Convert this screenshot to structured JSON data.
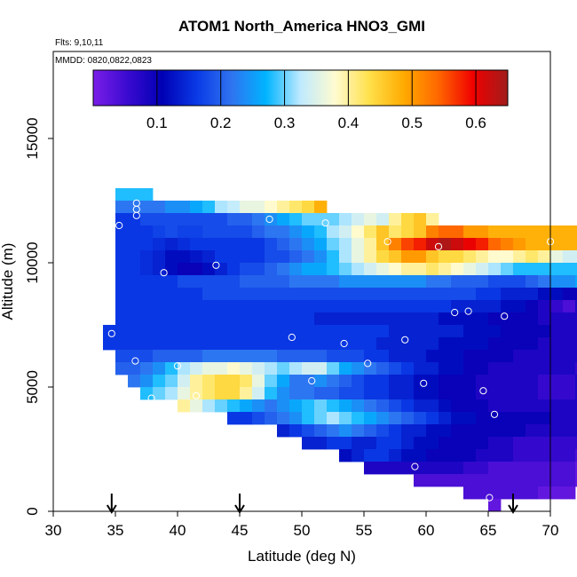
{
  "chart_data": {
    "type": "heatmap",
    "title": "ATOM1 North_America HNO3_GMI",
    "annotations": [
      "Flts: 9,10,11",
      "MMDD: 0820,0822,0823"
    ],
    "xlabel": "Latitude (deg N)",
    "ylabel": "Altitude (m)",
    "xlim": [
      30,
      70
    ],
    "ylim": [
      0,
      18500
    ],
    "x_ticks": [
      30,
      35,
      40,
      45,
      50,
      55,
      60,
      65,
      70
    ],
    "y_ticks": [
      0,
      5000,
      10000,
      15000
    ],
    "colorbar": {
      "min": 0.0,
      "max": 0.65,
      "ticks": [
        0.1,
        0.2,
        0.3,
        0.4,
        0.5,
        0.6
      ],
      "colors": [
        "#7a1ee8",
        "#3a0ad0",
        "#0000b4",
        "#0a3ae6",
        "#2f73f0",
        "#00b4ff",
        "#bfeaff",
        "#fffbd0",
        "#ffe04a",
        "#ffaa00",
        "#ff6600",
        "#f00000",
        "#a01c1c"
      ]
    },
    "cell_size": {
      "dlat": 1.0,
      "dalt": 500
    },
    "rows": [
      {
        "alt": 12750,
        "lat0": 35,
        "values": [
          0.28,
          0.28,
          0.28
        ]
      },
      {
        "alt": 12250,
        "lat0": 35,
        "values": [
          0.22,
          0.22,
          0.22,
          0.22,
          0.24,
          0.24,
          0.26,
          0.28,
          0.32,
          0.33,
          0.36,
          0.36,
          0.38,
          0.4,
          0.42,
          0.44,
          0.48
        ]
      },
      {
        "alt": 11750,
        "lat0": 35,
        "values": [
          0.16,
          0.16,
          0.18,
          0.18,
          0.18,
          0.18,
          0.18,
          0.18,
          0.18,
          0.2,
          0.2,
          0.22,
          0.24,
          0.26,
          0.28,
          0.3,
          0.3,
          0.3,
          0.32,
          0.34,
          0.36,
          0.34,
          0.4,
          0.44,
          0.46,
          0.4
        ]
      },
      {
        "alt": 11250,
        "lat0": 35,
        "values": [
          0.16,
          0.16,
          0.16,
          0.17,
          0.18,
          0.17,
          0.17,
          0.18,
          0.18,
          0.18,
          0.18,
          0.2,
          0.22,
          0.22,
          0.24,
          0.26,
          0.28,
          0.32,
          0.34,
          0.38,
          0.42,
          0.46,
          0.42,
          0.44,
          0.46,
          0.52,
          0.54,
          0.54,
          0.5,
          0.5,
          0.48,
          0.48,
          0.48,
          0.48,
          0.48,
          0.48,
          0.48,
          0.48,
          0.48
        ]
      },
      {
        "alt": 10750,
        "lat0": 35,
        "values": [
          0.16,
          0.16,
          0.16,
          0.15,
          0.14,
          0.15,
          0.16,
          0.16,
          0.16,
          0.16,
          0.16,
          0.16,
          0.18,
          0.2,
          0.22,
          0.24,
          0.26,
          0.3,
          0.32,
          0.36,
          0.4,
          0.46,
          0.52,
          0.56,
          0.58,
          0.62,
          0.64,
          0.62,
          0.6,
          0.58,
          0.54,
          0.52,
          0.5,
          0.48,
          0.48,
          0.48,
          0.48,
          0.48,
          0.48,
          0.48,
          0.48,
          0.48,
          0.48,
          0.48,
          0.48,
          0.48
        ]
      },
      {
        "alt": 10250,
        "lat0": 35,
        "values": [
          0.16,
          0.16,
          0.15,
          0.14,
          0.12,
          0.12,
          0.13,
          0.14,
          0.16,
          0.16,
          0.16,
          0.16,
          0.18,
          0.18,
          0.2,
          0.22,
          0.24,
          0.28,
          0.32,
          0.36,
          0.4,
          0.44,
          0.46,
          0.5,
          0.5,
          0.46,
          0.44,
          0.44,
          0.42,
          0.4,
          0.38,
          0.38,
          0.4,
          0.42,
          0.4,
          0.36,
          0.34,
          0.34,
          0.34,
          0.34,
          0.34,
          0.34,
          0.34
        ]
      },
      {
        "alt": 9750,
        "lat0": 35,
        "values": [
          0.16,
          0.16,
          0.15,
          0.14,
          0.12,
          0.1,
          0.1,
          0.12,
          0.14,
          0.16,
          0.18,
          0.18,
          0.2,
          0.22,
          0.24,
          0.26,
          0.26,
          0.28,
          0.3,
          0.32,
          0.34,
          0.36,
          0.38,
          0.4,
          0.4,
          0.42,
          0.4,
          0.38,
          0.36,
          0.34,
          0.32,
          0.3,
          0.28,
          0.28,
          0.28,
          0.28,
          0.28,
          0.28,
          0.28,
          0.28,
          0.26,
          0.34,
          0.38,
          0.42
        ]
      },
      {
        "alt": 9250,
        "lat0": 35,
        "values": [
          0.16,
          0.16,
          0.16,
          0.16,
          0.16,
          0.18,
          0.18,
          0.18,
          0.18,
          0.18,
          0.2,
          0.2,
          0.2,
          0.2,
          0.22,
          0.22,
          0.22,
          0.22,
          0.24,
          0.24,
          0.24,
          0.24,
          0.24,
          0.24,
          0.24,
          0.22,
          0.22,
          0.2,
          0.2,
          0.2,
          0.18,
          0.18,
          0.18,
          0.2,
          0.22,
          0.24,
          0.24,
          0.26,
          0.28,
          0.3,
          0.32,
          0.34,
          0.36
        ]
      },
      {
        "alt": 8750,
        "lat0": 35,
        "values": [
          0.16,
          0.16,
          0.16,
          0.16,
          0.16,
          0.16,
          0.16,
          0.18,
          0.18,
          0.18,
          0.18,
          0.18,
          0.18,
          0.18,
          0.18,
          0.18,
          0.18,
          0.18,
          0.18,
          0.18,
          0.18,
          0.18,
          0.18,
          0.18,
          0.18,
          0.18,
          0.18,
          0.18,
          0.18,
          0.16,
          0.16,
          0.14,
          0.14,
          0.14,
          0.12,
          0.12,
          0.1,
          0.1,
          0.12,
          0.16,
          0.2,
          0.24,
          0.28
        ]
      },
      {
        "alt": 8250,
        "lat0": 35,
        "values": [
          0.16,
          0.16,
          0.16,
          0.16,
          0.16,
          0.16,
          0.16,
          0.16,
          0.16,
          0.16,
          0.16,
          0.16,
          0.16,
          0.16,
          0.16,
          0.16,
          0.16,
          0.16,
          0.16,
          0.16,
          0.16,
          0.16,
          0.16,
          0.16,
          0.16,
          0.16,
          0.16,
          0.14,
          0.14,
          0.14,
          0.14,
          0.12,
          0.12,
          0.1,
          0.08,
          0.06,
          0.04,
          0.08,
          0.1,
          0.14,
          0.18,
          0.22,
          0.26
        ]
      },
      {
        "alt": 7750,
        "lat0": 35,
        "values": [
          0.16,
          0.16,
          0.16,
          0.16,
          0.16,
          0.16,
          0.16,
          0.16,
          0.16,
          0.16,
          0.16,
          0.16,
          0.16,
          0.16,
          0.16,
          0.16,
          0.14,
          0.14,
          0.14,
          0.14,
          0.14,
          0.14,
          0.14,
          0.14,
          0.14,
          0.14,
          0.12,
          0.12,
          0.12,
          0.12,
          0.1,
          0.1,
          0.1,
          0.1,
          0.08,
          0.08,
          0.08,
          0.08,
          0.1,
          0.14,
          0.18,
          0.24,
          0.28
        ]
      },
      {
        "alt": 7250,
        "lat0": 34,
        "values": [
          0.16,
          0.16,
          0.16,
          0.16,
          0.16,
          0.16,
          0.16,
          0.16,
          0.16,
          0.16,
          0.16,
          0.16,
          0.16,
          0.16,
          0.16,
          0.16,
          0.16,
          0.16,
          0.16,
          0.16,
          0.16,
          0.16,
          0.16,
          0.14,
          0.14,
          0.14,
          0.14,
          0.14,
          0.14,
          0.12,
          0.12,
          0.12,
          0.1,
          0.1,
          0.1,
          0.1,
          0.08,
          0.08,
          0.08,
          0.08,
          0.08,
          0.08,
          0.08,
          0.08
        ]
      },
      {
        "alt": 6750,
        "lat0": 34,
        "values": [
          0.16,
          0.16,
          0.16,
          0.16,
          0.16,
          0.16,
          0.16,
          0.16,
          0.16,
          0.16,
          0.16,
          0.16,
          0.16,
          0.16,
          0.16,
          0.16,
          0.16,
          0.16,
          0.16,
          0.16,
          0.16,
          0.16,
          0.14,
          0.14,
          0.14,
          0.14,
          0.14,
          0.12,
          0.12,
          0.12,
          0.12,
          0.1,
          0.1,
          0.1,
          0.1,
          0.08,
          0.08,
          0.08,
          0.08,
          0.08,
          0.08,
          0.08,
          0.08,
          0.1
        ]
      },
      {
        "alt": 6250,
        "lat0": 35,
        "values": [
          0.18,
          0.18,
          0.18,
          0.2,
          0.2,
          0.2,
          0.2,
          0.22,
          0.22,
          0.22,
          0.22,
          0.22,
          0.22,
          0.2,
          0.2,
          0.2,
          0.2,
          0.18,
          0.18,
          0.18,
          0.16,
          0.16,
          0.14,
          0.14,
          0.14,
          0.12,
          0.12,
          0.12,
          0.1,
          0.1,
          0.1,
          0.1,
          0.08,
          0.08,
          0.08,
          0.08,
          0.08,
          0.08,
          0.08,
          0.06,
          0.06,
          0.1,
          0.16
        ]
      },
      {
        "alt": 5750,
        "lat0": 35,
        "values": [
          0.2,
          0.2,
          0.22,
          0.24,
          0.28,
          0.32,
          0.34,
          0.36,
          0.36,
          0.38,
          0.36,
          0.34,
          0.32,
          0.3,
          0.32,
          0.34,
          0.34,
          0.3,
          0.26,
          0.24,
          0.22,
          0.2,
          0.18,
          0.16,
          0.14,
          0.14,
          0.12,
          0.12,
          0.1,
          0.1,
          0.08,
          0.08,
          0.08,
          0.08,
          0.08,
          0.08,
          0.08,
          0.06,
          0.06,
          0.06,
          0.08,
          0.12
        ]
      },
      {
        "alt": 5250,
        "lat0": 36,
        "values": [
          0.22,
          0.24,
          0.28,
          0.3,
          0.34,
          0.4,
          0.42,
          0.44,
          0.44,
          0.42,
          0.36,
          0.3,
          0.26,
          0.22,
          0.22,
          0.24,
          0.22,
          0.2,
          0.18,
          0.16,
          0.16,
          0.14,
          0.14,
          0.12,
          0.12,
          0.1,
          0.1,
          0.1,
          0.08,
          0.08,
          0.08,
          0.08,
          0.08,
          0.06,
          0.06,
          0.06,
          0.08,
          0.1,
          0.12
        ]
      },
      {
        "alt": 4750,
        "lat0": 37,
        "values": [
          0.28,
          0.3,
          0.32,
          0.36,
          0.4,
          0.42,
          0.44,
          0.44,
          0.4,
          0.34,
          0.28,
          0.24,
          0.22,
          0.22,
          0.2,
          0.2,
          0.18,
          0.18,
          0.16,
          0.16,
          0.14,
          0.14,
          0.12,
          0.12,
          0.1,
          0.1,
          0.1,
          0.08,
          0.08,
          0.08,
          0.08,
          0.08,
          0.06,
          0.06,
          0.06,
          0.08,
          0.1
        ]
      },
      {
        "alt": 4250,
        "lat0": 40,
        "values": [
          0.4,
          0.36,
          0.32,
          0.3,
          0.28,
          0.26,
          0.24,
          0.22,
          0.24,
          0.26,
          0.28,
          0.3,
          0.28,
          0.26,
          0.24,
          0.22,
          0.2,
          0.18,
          0.16,
          0.14,
          0.14,
          0.12,
          0.1,
          0.1,
          0.1,
          0.08,
          0.08,
          0.08,
          0.08,
          0.08,
          0.08,
          0.08,
          0.08,
          0.08
        ]
      },
      {
        "alt": 3750,
        "lat0": 44,
        "values": [
          0.16,
          0.16,
          0.18,
          0.2,
          0.22,
          0.24,
          0.28,
          0.3,
          0.32,
          0.3,
          0.28,
          0.26,
          0.24,
          0.22,
          0.2,
          0.18,
          0.16,
          0.14,
          0.12,
          0.12,
          0.1,
          0.1,
          0.1,
          0.1,
          0.1,
          0.1,
          0.08,
          0.08,
          0.08,
          0.08
        ]
      },
      {
        "alt": 3250,
        "lat0": 48,
        "values": [
          0.14,
          0.16,
          0.18,
          0.2,
          0.22,
          0.24,
          0.22,
          0.2,
          0.18,
          0.16,
          0.14,
          0.14,
          0.12,
          0.12,
          0.1,
          0.1,
          0.1,
          0.1,
          0.1,
          0.1,
          0.08,
          0.08,
          0.08,
          0.08,
          0.08,
          0.08
        ]
      },
      {
        "alt": 2750,
        "lat0": 50,
        "values": [
          0.14,
          0.14,
          0.16,
          0.16,
          0.14,
          0.14,
          0.16,
          0.16,
          0.14,
          0.12,
          0.12,
          0.1,
          0.1,
          0.1,
          0.1,
          0.08,
          0.08,
          0.06,
          0.06,
          0.06,
          0.06,
          0.06,
          0.06,
          0.06
        ]
      },
      {
        "alt": 2250,
        "lat0": 53,
        "values": [
          0.12,
          0.14,
          0.16,
          0.16,
          0.14,
          0.12,
          0.12,
          0.1,
          0.1,
          0.1,
          0.1,
          0.08,
          0.08,
          0.08,
          0.06,
          0.06,
          0.06,
          0.06,
          0.06,
          0.04
        ]
      },
      {
        "alt": 1750,
        "lat0": 55,
        "values": [
          0.08,
          0.08,
          0.08,
          0.08,
          0.08,
          0.08,
          0.08,
          0.08,
          0.06,
          0.06,
          0.04,
          0.04,
          0.04,
          0.04,
          0.04,
          0.04,
          0.04,
          0.02
        ]
      },
      {
        "alt": 1250,
        "lat0": 59,
        "values": [
          0.04,
          0.04,
          0.04,
          0.04,
          0.04,
          0.04,
          0.04,
          0.04,
          0.04,
          0.04,
          0.04,
          0.04,
          0.04,
          0.02
        ]
      },
      {
        "alt": 750,
        "lat0": 63,
        "values": [
          0.04,
          0.04,
          0.04,
          0.04,
          0.04,
          0.04,
          0.02,
          0.02,
          0.02
        ]
      },
      {
        "alt": 250,
        "lat0": 65,
        "values": [
          0.02
        ]
      }
    ],
    "points": [
      {
        "lat": 35.3,
        "alt": 11500
      },
      {
        "lat": 36.7,
        "alt": 12400
      },
      {
        "lat": 36.7,
        "alt": 12150
      },
      {
        "lat": 36.7,
        "alt": 11900
      },
      {
        "lat": 38.9,
        "alt": 9600
      },
      {
        "lat": 43.1,
        "alt": 9900
      },
      {
        "lat": 47.4,
        "alt": 11750
      },
      {
        "lat": 51.9,
        "alt": 11600
      },
      {
        "lat": 56.9,
        "alt": 10850
      },
      {
        "lat": 61.0,
        "alt": 10650
      },
      {
        "lat": 70.0,
        "alt": 10850
      },
      {
        "lat": 34.7,
        "alt": 7150
      },
      {
        "lat": 36.6,
        "alt": 6050
      },
      {
        "lat": 40.0,
        "alt": 5850
      },
      {
        "lat": 41.5,
        "alt": 4650
      },
      {
        "lat": 37.9,
        "alt": 4550
      },
      {
        "lat": 49.2,
        "alt": 7000
      },
      {
        "lat": 50.8,
        "alt": 5250
      },
      {
        "lat": 53.4,
        "alt": 6750
      },
      {
        "lat": 55.3,
        "alt": 5950
      },
      {
        "lat": 58.3,
        "alt": 6900
      },
      {
        "lat": 59.8,
        "alt": 5150
      },
      {
        "lat": 62.3,
        "alt": 8000
      },
      {
        "lat": 63.4,
        "alt": 8050
      },
      {
        "lat": 66.3,
        "alt": 7850
      },
      {
        "lat": 64.6,
        "alt": 4850
      },
      {
        "lat": 65.5,
        "alt": 3900
      },
      {
        "lat": 59.1,
        "alt": 1800
      },
      {
        "lat": 65.1,
        "alt": 550
      }
    ],
    "flight_marker_lats": [
      34.7,
      45.0,
      67.0
    ]
  }
}
